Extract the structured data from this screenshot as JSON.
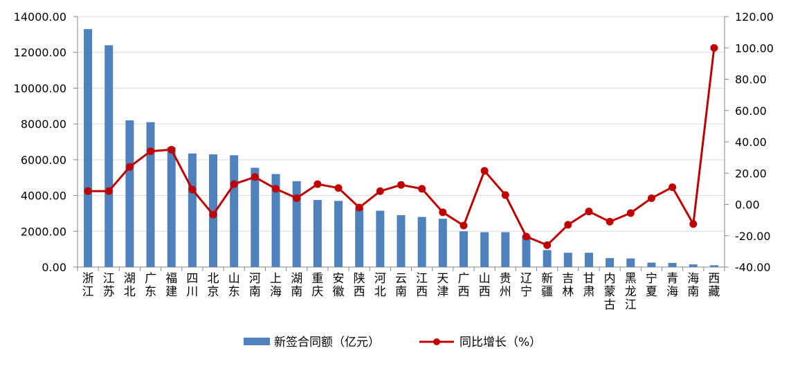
{
  "chart_data": {
    "type": "bar-line-combo",
    "categories": [
      "浙江",
      "江苏",
      "湖北",
      "广东",
      "福建",
      "四川",
      "北京",
      "山东",
      "河南",
      "上海",
      "湖南",
      "重庆",
      "安徽",
      "陕西",
      "河北",
      "云南",
      "江西",
      "天津",
      "广西",
      "山西",
      "贵州",
      "辽宁",
      "新疆",
      "吉林",
      "甘肃",
      "内蒙古",
      "黑龙江",
      "宁夏",
      "青海",
      "海南",
      "西藏"
    ],
    "series": [
      {
        "name": "新签合同额（亿元）",
        "type": "bar",
        "axis": "left",
        "color": "#4F81BD",
        "values": [
          13300,
          12400,
          8200,
          8100,
          6700,
          6350,
          6300,
          6250,
          5550,
          5200,
          4800,
          3750,
          3700,
          3300,
          3150,
          2900,
          2800,
          2700,
          2000,
          1950,
          1950,
          1750,
          950,
          800,
          800,
          500,
          480,
          250,
          230,
          150,
          100
        ]
      },
      {
        "name": "同比增长（%）",
        "type": "line",
        "axis": "right",
        "color": "#C00000",
        "values": [
          8.5,
          8.5,
          24,
          34,
          35,
          9.5,
          -6.5,
          13,
          17.5,
          10,
          4,
          13,
          10.5,
          -2,
          8.5,
          12.5,
          10,
          -5,
          -13.5,
          21.5,
          6,
          -20.5,
          -26,
          -13,
          -4.5,
          -11,
          -5.5,
          4,
          11,
          -12.5,
          100
        ]
      }
    ],
    "y_left": {
      "min": 0,
      "max": 14000,
      "step": 2000,
      "tick_labels": [
        "0.00",
        "2000.00",
        "4000.00",
        "6000.00",
        "8000.00",
        "10000.00",
        "12000.00",
        "14000.00"
      ]
    },
    "y_right": {
      "min": -40,
      "max": 120,
      "step": 20,
      "tick_labels": [
        "-40.00",
        "-20.00",
        "0.00",
        "20.00",
        "40.00",
        "60.00",
        "80.00",
        "100.00",
        "120.00"
      ]
    },
    "grid": true,
    "legend_position": "bottom"
  }
}
